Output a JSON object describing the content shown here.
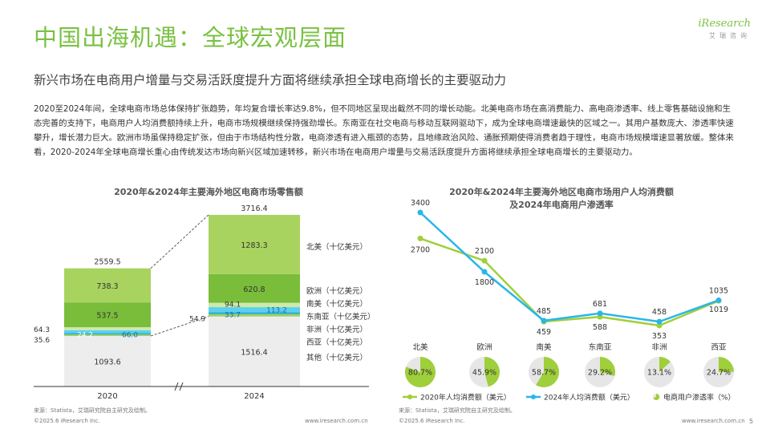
{
  "header": {
    "title": "中国出海机遇：全球宏观层面",
    "subtitle": "新兴市场在电商用户增量与交易活跃度提升方面将继续承担全球电商增长的主要驱动力",
    "logo_text": "iResearch",
    "logo_sub": "艾瑞咨询"
  },
  "paragraph": "2020至2024年间，全球电商市场总体保持扩张趋势，年均复合增长率达9.8%，但不同地区呈现出截然不同的增长动能。北美电商市场在高消费能力、高电商渗透率、线上零售基础设施和生态完善的支持下，电商用户人均消费额持续上升，电商市场规模继续保持强劲增长。东南亚在社交电商与移动互联网驱动下，成为全球电商增速最快的区域之一。其用户基数庞大、渗透率快速攀升，增长潜力巨大。欧洲市场虽保持稳定扩张，但由于市场结构性分散，电商渗透有进入瓶颈的态势，且地缘政治风险、通胀预期使得消费者趋于理性，电商市场规模增速显著放缓。整体来看，2020-2024年全球电商增长重心由传统发达市场向新兴区域加速转移，新兴市场在电商用户增量与交易活跃度提升方面将继续承担全球电商增长的主要驱动力。",
  "left_chart": {
    "title": "2020年&2024年主要海外地区电商市场零售额",
    "source": "来源：Statista，艾瑞研究院自主研究及绘制。",
    "chart_data": {
      "type": "bar",
      "stacked": true,
      "unit": "十亿美元",
      "categories": [
        "2020",
        "2024"
      ],
      "totals": [
        "2559.5",
        "3716.4"
      ],
      "series": [
        {
          "name": "其他（十亿美元）",
          "color": "#ededed",
          "values": [
            1093.6,
            1516.4
          ],
          "labels": [
            "1093.6",
            "1516.4"
          ]
        },
        {
          "name": "西亚（十亿美元）",
          "color": "#9fcf63",
          "values": [
            35.6,
            54.9
          ],
          "labels": [
            "35.6",
            "54.9"
          ]
        },
        {
          "name": "非洲（十亿美元）",
          "color": "#1ca8e3",
          "values": [
            24.2,
            33.7
          ],
          "labels": [
            "24.2",
            "33.7"
          ]
        },
        {
          "name": "东南亚（十亿美元）",
          "color": "#5cd0ee",
          "values": [
            66.0,
            113.2
          ],
          "labels": [
            "66.0",
            "113.2"
          ]
        },
        {
          "name": "南美（十亿美元）",
          "color": "#cfe9a8",
          "values": [
            64.3,
            94.1
          ],
          "labels": [
            "64.3",
            "94.1"
          ]
        },
        {
          "name": "欧洲（十亿美元）",
          "color": "#79bd3a",
          "values": [
            537.5,
            620.8
          ],
          "labels": [
            "537.5",
            "620.8"
          ]
        },
        {
          "name": "北美（十亿美元）",
          "color": "#a8d35f",
          "values": [
            738.3,
            1283.3
          ],
          "labels": [
            "738.3",
            "1283.3"
          ]
        }
      ]
    }
  },
  "right_chart": {
    "title_line1": "2020年&2024年主要海外地区电商市场用户人均消费额",
    "title_line2": "及2024年电商用户渗透率",
    "source": "来源：Statista，艾瑞研究院自主研究及绘制。",
    "chart_data": {
      "type": "line",
      "categories": [
        "北美",
        "欧洲",
        "南美",
        "东南亚",
        "非洲",
        "西亚"
      ],
      "series": [
        {
          "name": "2020年人均消费额（美元）",
          "color": "#9fcf3b",
          "values": [
            2700,
            2100,
            459,
            588,
            353,
            1019
          ]
        },
        {
          "name": "2024年人均消费额（美元）",
          "color": "#29b6e8",
          "values": [
            3400,
            1800,
            485,
            681,
            458,
            1035
          ]
        }
      ],
      "penetration": {
        "name": "电商用户渗透率（%）",
        "color": "#9fcf3b",
        "values": [
          80.7,
          45.9,
          58.7,
          29.2,
          13.1,
          24.7
        ],
        "labels": [
          "80.7%",
          "45.9%",
          "58.7%",
          "29.2%",
          "13.1%",
          "24.7%"
        ]
      }
    }
  },
  "footer": {
    "copyright": "©2025.6 iResearch Inc.",
    "website": "www.iresearch.com.cn",
    "page": "5"
  }
}
